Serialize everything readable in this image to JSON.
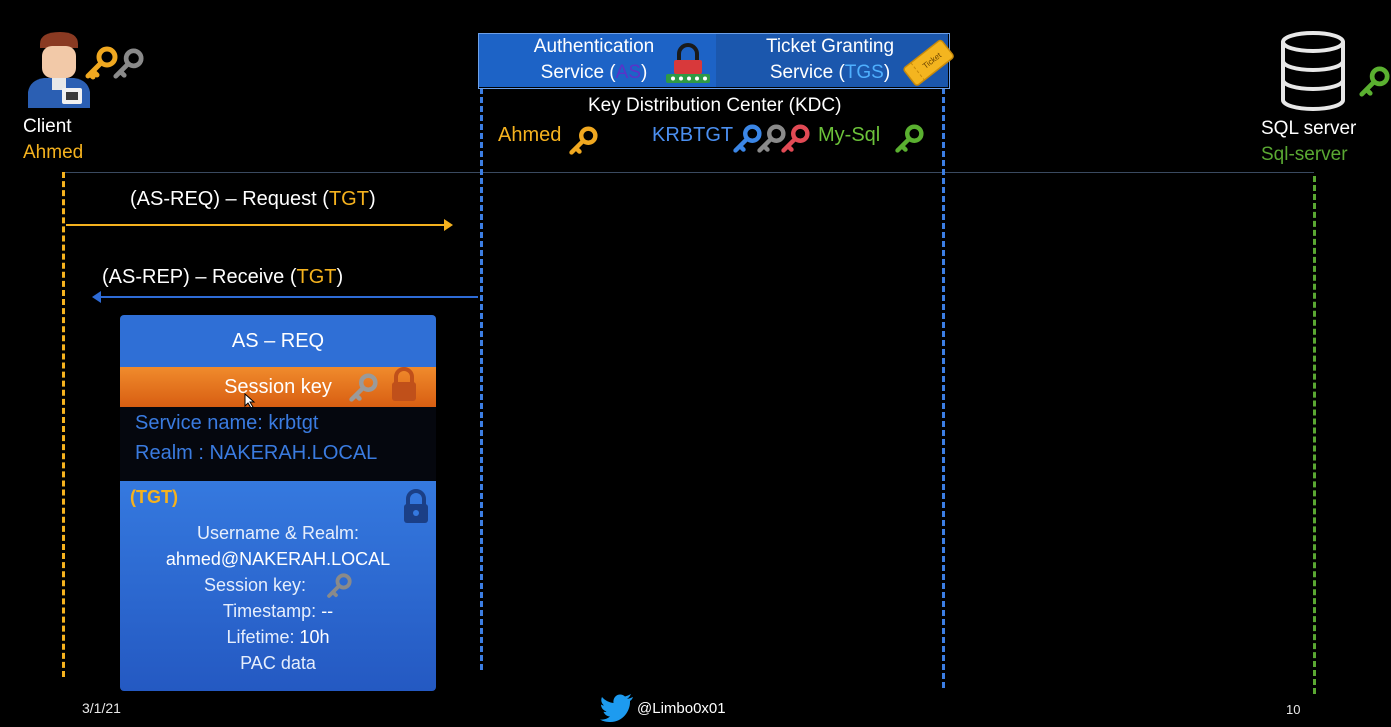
{
  "client": {
    "title": "Client",
    "name": "Ahmed"
  },
  "server": {
    "title": "SQL server",
    "name": "Sql-server"
  },
  "kdc": {
    "as_line1": "Authentication",
    "as_line2_prefix": "Service (",
    "as_abbr": "AS",
    "as_line2_suffix": ")",
    "tgs_line1": "Ticket Granting",
    "tgs_line2_prefix": "Service (",
    "tgs_abbr": "TGS",
    "tgs_line2_suffix": ")",
    "ticket_icon_text": "Ticket",
    "title": "Key Distribution Center (KDC)",
    "keys": {
      "ahmed": "Ahmed",
      "krbtgt": "KRBTGT",
      "mysql": "My-Sql"
    }
  },
  "messages": {
    "req_prefix": "(AS-REQ) – Request (",
    "req_tgt": "TGT",
    "req_suffix": ")",
    "rep_prefix": "(AS-REP) – Receive (",
    "rep_tgt": "TGT",
    "rep_suffix": ")"
  },
  "packet": {
    "header": "AS – REQ",
    "session_key_label": "Session key",
    "service_name": "Service name: krbtgt",
    "realm": "Realm : NAKERAH.LOCAL",
    "tgt_tag": "(TGT)",
    "username_realm_label": "Username & Realm",
    "colon": ":",
    "username_value": "ahmed@NAKERAH.LOCAL",
    "session_key_line": "Session key:",
    "timestamp_label": "Timestamp:",
    "timestamp_value": "--",
    "lifetime_label": "Lifetime:",
    "lifetime_value": "10h",
    "pac": "PAC data"
  },
  "footer": {
    "date": "3/1/21",
    "handle": "@Limbo0x01",
    "page": "10"
  },
  "colors": {
    "client_accent": "#f5b21e",
    "kdc_blue": "#1d63c6",
    "server_green": "#5aa832",
    "session_orange": "#e8751f",
    "packet_blue": "#2f6fd6"
  },
  "icons": [
    "user-icon",
    "gold-key-icon",
    "grey-key-icon",
    "lock-icon",
    "ticket-icon",
    "database-icon",
    "green-key-icon",
    "blue-key-icon",
    "red-key-icon",
    "twitter-icon",
    "cursor-icon"
  ]
}
